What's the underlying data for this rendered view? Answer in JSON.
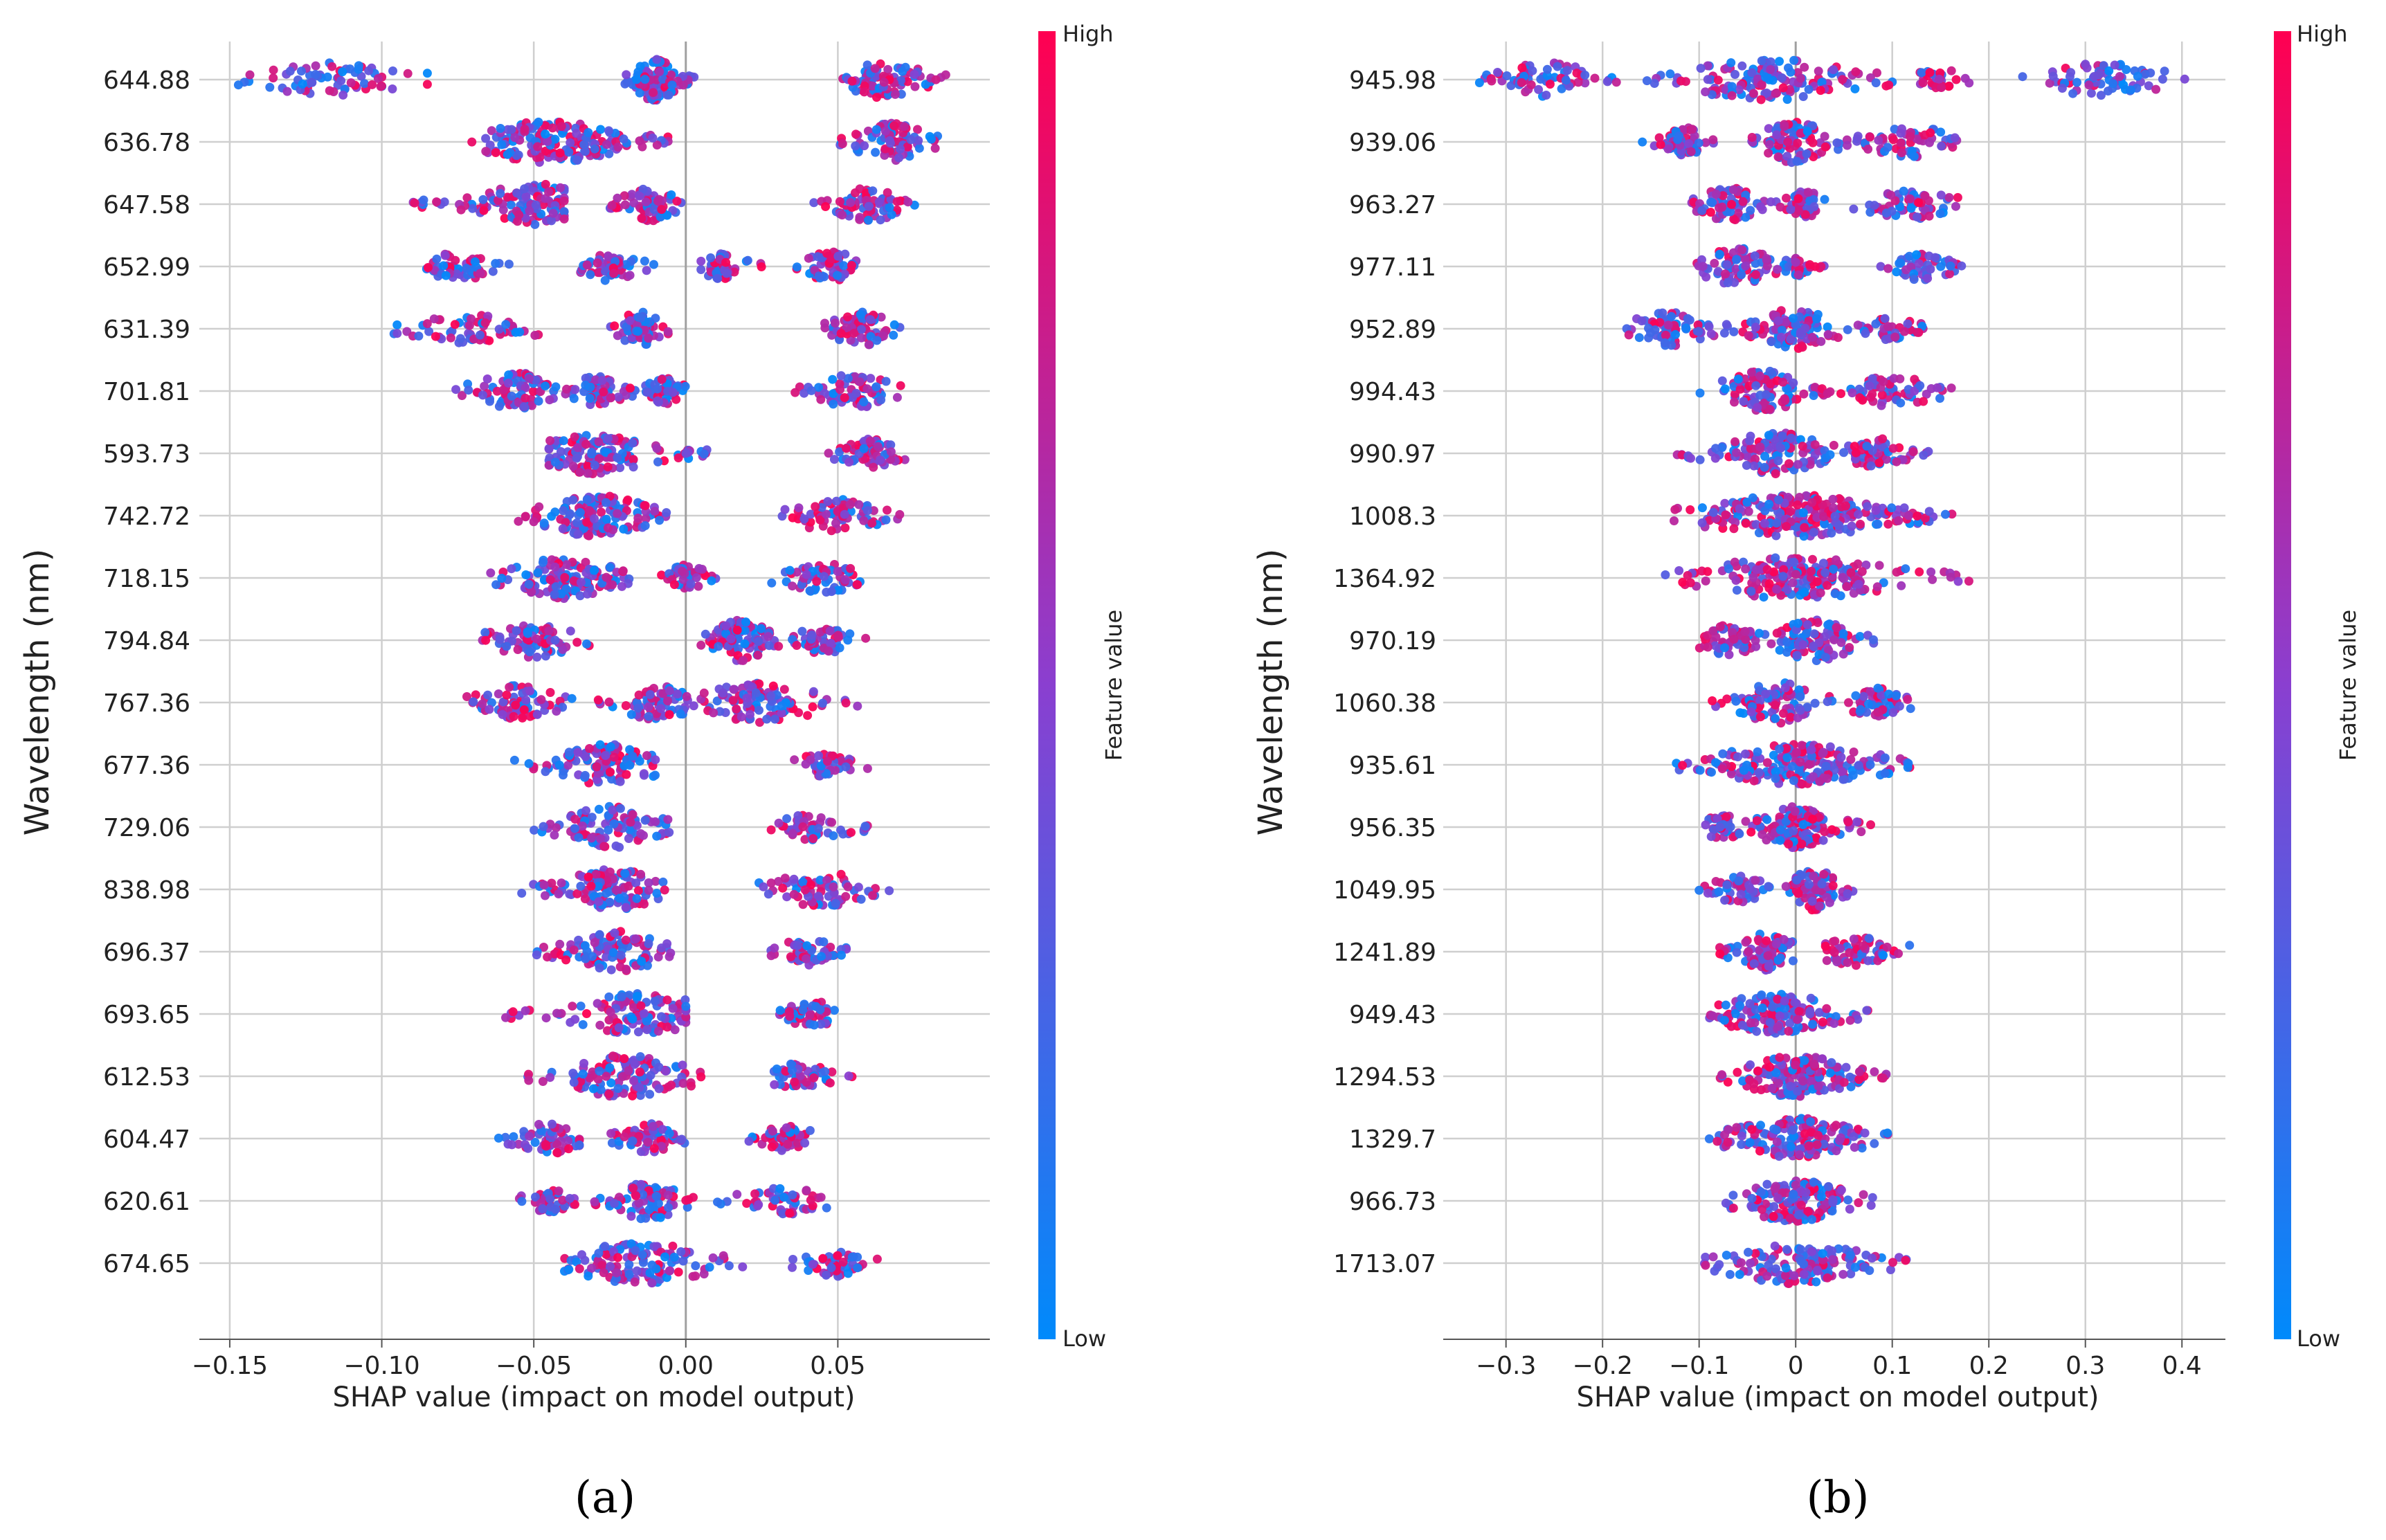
{
  "colors": {
    "low": "#008afb",
    "high": "#ff0051",
    "grid": "#cfcfcf",
    "zero_line": "#a0a0a0"
  },
  "chart_data": [
    {
      "type": "scatter",
      "subtype": "shap-beeswarm",
      "panel_label": "(a)",
      "xlabel": "SHAP value (impact on model output)",
      "ylabel": "Wavelength (nm)",
      "xlim": [
        -0.16,
        0.1
      ],
      "xticks": [
        -0.15,
        -0.1,
        -0.05,
        0.0,
        0.05
      ],
      "xtick_labels": [
        "−0.15",
        "−0.10",
        "−0.05",
        "0.00",
        "0.05"
      ],
      "colorbar": {
        "label": "Feature value",
        "high": "High",
        "low": "Low"
      },
      "grid": true,
      "features": [
        {
          "name": "644.88",
          "clusters": [
            {
              "min": -0.15,
              "max": -0.085,
              "c": -0.115,
              "n": 70,
              "hi": 0.45
            },
            {
              "min": -0.02,
              "max": 0.003,
              "c": -0.01,
              "n": 110,
              "hi": 0.4
            },
            {
              "min": 0.05,
              "max": 0.086,
              "c": 0.065,
              "n": 80,
              "hi": 0.55
            }
          ]
        },
        {
          "name": "636.78",
          "clusters": [
            {
              "min": -0.072,
              "max": -0.002,
              "c": -0.045,
              "n": 170,
              "hi": 0.45
            },
            {
              "min": 0.05,
              "max": 0.085,
              "c": 0.068,
              "n": 80,
              "hi": 0.55
            }
          ]
        },
        {
          "name": "647.58",
          "clusters": [
            {
              "min": -0.09,
              "max": -0.04,
              "c": -0.05,
              "n": 120,
              "hi": 0.5
            },
            {
              "min": -0.025,
              "max": 0.0,
              "c": -0.012,
              "n": 70,
              "hi": 0.45
            },
            {
              "min": 0.042,
              "max": 0.078,
              "c": 0.06,
              "n": 70,
              "hi": 0.55
            }
          ]
        },
        {
          "name": "652.99",
          "clusters": [
            {
              "min": -0.088,
              "max": -0.058,
              "c": -0.075,
              "n": 55,
              "hi": 0.5
            },
            {
              "min": -0.035,
              "max": -0.01,
              "c": -0.025,
              "n": 55,
              "hi": 0.5
            },
            {
              "min": 0.005,
              "max": 0.025,
              "c": 0.012,
              "n": 50,
              "hi": 0.45
            },
            {
              "min": 0.035,
              "max": 0.058,
              "c": 0.048,
              "n": 60,
              "hi": 0.5
            }
          ]
        },
        {
          "name": "631.39",
          "clusters": [
            {
              "min": -0.096,
              "max": -0.045,
              "c": -0.07,
              "n": 60,
              "hi": 0.5
            },
            {
              "min": -0.025,
              "max": -0.005,
              "c": -0.015,
              "n": 70,
              "hi": 0.45
            },
            {
              "min": 0.045,
              "max": 0.072,
              "c": 0.058,
              "n": 70,
              "hi": 0.6
            }
          ]
        },
        {
          "name": "701.81",
          "clusters": [
            {
              "min": -0.078,
              "max": -0.04,
              "c": -0.055,
              "n": 80,
              "hi": 0.5
            },
            {
              "min": -0.04,
              "max": -0.015,
              "c": -0.03,
              "n": 60,
              "hi": 0.5
            },
            {
              "min": -0.015,
              "max": 0.0,
              "c": -0.007,
              "n": 50,
              "hi": 0.45
            },
            {
              "min": 0.035,
              "max": 0.072,
              "c": 0.055,
              "n": 70,
              "hi": 0.55
            }
          ]
        },
        {
          "name": "593.73",
          "clusters": [
            {
              "min": -0.045,
              "max": 0.008,
              "c": -0.03,
              "n": 140,
              "hi": 0.45
            },
            {
              "min": 0.045,
              "max": 0.073,
              "c": 0.06,
              "n": 60,
              "hi": 0.6
            }
          ]
        },
        {
          "name": "742.72",
          "clusters": [
            {
              "min": -0.058,
              "max": -0.005,
              "c": -0.03,
              "n": 140,
              "hi": 0.45
            },
            {
              "min": 0.03,
              "max": 0.072,
              "c": 0.05,
              "n": 70,
              "hi": 0.55
            }
          ]
        },
        {
          "name": "718.15",
          "clusters": [
            {
              "min": -0.065,
              "max": -0.015,
              "c": -0.04,
              "n": 130,
              "hi": 0.5
            },
            {
              "min": -0.01,
              "max": 0.01,
              "c": 0.0,
              "n": 50,
              "hi": 0.5
            },
            {
              "min": 0.028,
              "max": 0.062,
              "c": 0.045,
              "n": 60,
              "hi": 0.5
            }
          ]
        },
        {
          "name": "794.84",
          "clusters": [
            {
              "min": -0.072,
              "max": -0.03,
              "c": -0.05,
              "n": 70,
              "hi": 0.45
            },
            {
              "min": 0.005,
              "max": 0.035,
              "c": 0.018,
              "n": 100,
              "hi": 0.55
            },
            {
              "min": 0.035,
              "max": 0.06,
              "c": 0.045,
              "n": 50,
              "hi": 0.3
            }
          ]
        },
        {
          "name": "767.36",
          "clusters": [
            {
              "min": -0.072,
              "max": -0.035,
              "c": -0.055,
              "n": 70,
              "hi": 0.5
            },
            {
              "min": -0.03,
              "max": 0.005,
              "c": -0.01,
              "n": 70,
              "hi": 0.5
            },
            {
              "min": 0.005,
              "max": 0.06,
              "c": 0.025,
              "n": 100,
              "hi": 0.5
            }
          ]
        },
        {
          "name": "677.36",
          "clusters": [
            {
              "min": -0.06,
              "max": -0.01,
              "c": -0.025,
              "n": 110,
              "hi": 0.45
            },
            {
              "min": 0.035,
              "max": 0.06,
              "c": 0.046,
              "n": 40,
              "hi": 0.55
            }
          ]
        },
        {
          "name": "729.06",
          "clusters": [
            {
              "min": -0.05,
              "max": -0.005,
              "c": -0.025,
              "n": 100,
              "hi": 0.45
            },
            {
              "min": 0.028,
              "max": 0.06,
              "c": 0.042,
              "n": 50,
              "hi": 0.5
            }
          ]
        },
        {
          "name": "838.98",
          "clusters": [
            {
              "min": -0.055,
              "max": -0.005,
              "c": -0.025,
              "n": 120,
              "hi": 0.45
            },
            {
              "min": 0.02,
              "max": 0.067,
              "c": 0.045,
              "n": 70,
              "hi": 0.55
            }
          ]
        },
        {
          "name": "696.37",
          "clusters": [
            {
              "min": -0.05,
              "max": -0.005,
              "c": -0.022,
              "n": 100,
              "hi": 0.45
            },
            {
              "min": 0.028,
              "max": 0.053,
              "c": 0.04,
              "n": 50,
              "hi": 0.5
            }
          ]
        },
        {
          "name": "693.65",
          "clusters": [
            {
              "min": -0.06,
              "max": 0.0,
              "c": -0.015,
              "n": 120,
              "hi": 0.5
            },
            {
              "min": 0.03,
              "max": 0.055,
              "c": 0.042,
              "n": 50,
              "hi": 0.55
            }
          ]
        },
        {
          "name": "612.53",
          "clusters": [
            {
              "min": -0.058,
              "max": 0.005,
              "c": -0.02,
              "n": 120,
              "hi": 0.5
            },
            {
              "min": 0.025,
              "max": 0.055,
              "c": 0.038,
              "n": 50,
              "hi": 0.5
            }
          ]
        },
        {
          "name": "604.47",
          "clusters": [
            {
              "min": -0.065,
              "max": -0.035,
              "c": -0.045,
              "n": 60,
              "hi": 0.5
            },
            {
              "min": -0.025,
              "max": 0.0,
              "c": -0.012,
              "n": 60,
              "hi": 0.45
            },
            {
              "min": 0.02,
              "max": 0.045,
              "c": 0.033,
              "n": 50,
              "hi": 0.55
            }
          ]
        },
        {
          "name": "620.61",
          "clusters": [
            {
              "min": -0.055,
              "max": -0.035,
              "c": -0.045,
              "n": 40,
              "hi": 0.45
            },
            {
              "min": -0.03,
              "max": 0.005,
              "c": -0.012,
              "n": 80,
              "hi": 0.5
            },
            {
              "min": 0.01,
              "max": 0.05,
              "c": 0.033,
              "n": 50,
              "hi": 0.5
            }
          ]
        },
        {
          "name": "674.65",
          "clusters": [
            {
              "min": -0.045,
              "max": 0.02,
              "c": -0.015,
              "n": 130,
              "hi": 0.5
            },
            {
              "min": 0.035,
              "max": 0.065,
              "c": 0.05,
              "n": 50,
              "hi": 0.5
            }
          ]
        }
      ]
    },
    {
      "type": "scatter",
      "subtype": "shap-beeswarm",
      "panel_label": "(b)",
      "xlabel": "SHAP value (impact on model output)",
      "ylabel": "Wavelength (nm)",
      "xlim": [
        -0.365,
        0.445
      ],
      "xticks": [
        -0.3,
        -0.2,
        -0.1,
        0.0,
        0.1,
        0.2,
        0.3,
        0.4
      ],
      "xtick_labels": [
        "−0.3",
        "−0.2",
        "−0.1",
        "0",
        "0.1",
        "0.2",
        "0.3",
        "0.4"
      ],
      "colorbar": {
        "label": "Feature value",
        "high": "High",
        "low": "Low"
      },
      "grid": true,
      "features": [
        {
          "name": "945.98",
          "clusters": [
            {
              "min": -0.335,
              "max": -0.18,
              "c": -0.26,
              "n": 70,
              "hi": 0.45
            },
            {
              "min": -0.16,
              "max": 0.1,
              "c": -0.03,
              "n": 140,
              "hi": 0.5
            },
            {
              "min": 0.1,
              "max": 0.18,
              "c": 0.15,
              "n": 30,
              "hi": 0.7
            },
            {
              "min": 0.23,
              "max": 0.41,
              "c": 0.32,
              "n": 70,
              "hi": 0.25
            }
          ]
        },
        {
          "name": "939.06",
          "clusters": [
            {
              "min": -0.16,
              "max": -0.085,
              "c": -0.12,
              "n": 60,
              "hi": 0.5
            },
            {
              "min": -0.05,
              "max": 0.055,
              "c": 0.0,
              "n": 90,
              "hi": 0.5
            },
            {
              "min": 0.06,
              "max": 0.19,
              "c": 0.12,
              "n": 60,
              "hi": 0.55
            }
          ]
        },
        {
          "name": "963.27",
          "clusters": [
            {
              "min": -0.11,
              "max": -0.02,
              "c": -0.07,
              "n": 70,
              "hi": 0.45
            },
            {
              "min": -0.02,
              "max": 0.03,
              "c": 0.01,
              "n": 50,
              "hi": 0.5
            },
            {
              "min": 0.05,
              "max": 0.17,
              "c": 0.12,
              "n": 60,
              "hi": 0.45
            }
          ]
        },
        {
          "name": "977.11",
          "clusters": [
            {
              "min": -0.11,
              "max": 0.0,
              "c": -0.06,
              "n": 80,
              "hi": 0.5
            },
            {
              "min": 0.0,
              "max": 0.05,
              "c": 0.0,
              "n": 30,
              "hi": 0.6
            },
            {
              "min": 0.08,
              "max": 0.175,
              "c": 0.13,
              "n": 50,
              "hi": 0.3
            }
          ]
        },
        {
          "name": "952.89",
          "clusters": [
            {
              "min": -0.175,
              "max": -0.06,
              "c": -0.13,
              "n": 70,
              "hi": 0.35
            },
            {
              "min": -0.06,
              "max": 0.06,
              "c": 0.0,
              "n": 100,
              "hi": 0.5
            },
            {
              "min": 0.06,
              "max": 0.135,
              "c": 0.1,
              "n": 40,
              "hi": 0.55
            }
          ]
        },
        {
          "name": "994.43",
          "clusters": [
            {
              "min": -0.1,
              "max": 0.03,
              "c": -0.035,
              "n": 100,
              "hi": 0.45
            },
            {
              "min": 0.03,
              "max": 0.165,
              "c": 0.1,
              "n": 60,
              "hi": 0.5
            }
          ]
        },
        {
          "name": "990.97",
          "clusters": [
            {
              "min": -0.13,
              "max": 0.03,
              "c": -0.02,
              "n": 120,
              "hi": 0.45
            },
            {
              "min": 0.03,
              "max": 0.145,
              "c": 0.08,
              "n": 60,
              "hi": 0.5
            }
          ]
        },
        {
          "name": "1008.3",
          "clusters": [
            {
              "min": -0.13,
              "max": 0.165,
              "c": 0.0,
              "n": 230,
              "hi": 0.5
            }
          ]
        },
        {
          "name": "1364.92",
          "clusters": [
            {
              "min": -0.135,
              "max": 0.18,
              "c": 0.0,
              "n": 200,
              "hi": 0.65
            }
          ]
        },
        {
          "name": "970.19",
          "clusters": [
            {
              "min": -0.11,
              "max": -0.03,
              "c": -0.07,
              "n": 60,
              "hi": 0.5
            },
            {
              "min": -0.03,
              "max": 0.085,
              "c": 0.02,
              "n": 100,
              "hi": 0.45
            }
          ]
        },
        {
          "name": "1060.38",
          "clusters": [
            {
              "min": -0.09,
              "max": 0.02,
              "c": -0.02,
              "n": 90,
              "hi": 0.5
            },
            {
              "min": 0.02,
              "max": 0.12,
              "c": 0.08,
              "n": 60,
              "hi": 0.55
            }
          ]
        },
        {
          "name": "935.61",
          "clusters": [
            {
              "min": -0.13,
              "max": 0.12,
              "c": 0.0,
              "n": 190,
              "hi": 0.5
            }
          ]
        },
        {
          "name": "956.35",
          "clusters": [
            {
              "min": -0.1,
              "max": -0.04,
              "c": -0.075,
              "n": 45,
              "hi": 0.45
            },
            {
              "min": -0.04,
              "max": 0.08,
              "c": 0.0,
              "n": 120,
              "hi": 0.5
            }
          ]
        },
        {
          "name": "1049.95",
          "clusters": [
            {
              "min": -0.1,
              "max": -0.02,
              "c": -0.06,
              "n": 50,
              "hi": 0.4
            },
            {
              "min": -0.01,
              "max": 0.065,
              "c": 0.02,
              "n": 90,
              "hi": 0.5
            }
          ]
        },
        {
          "name": "1241.89",
          "clusters": [
            {
              "min": -0.08,
              "max": 0.0,
              "c": -0.03,
              "n": 80,
              "hi": 0.6
            },
            {
              "min": 0.0,
              "max": 0.12,
              "c": 0.07,
              "n": 60,
              "hi": 0.65
            }
          ]
        },
        {
          "name": "949.43",
          "clusters": [
            {
              "min": -0.09,
              "max": 0.08,
              "c": -0.02,
              "n": 140,
              "hi": 0.45
            }
          ]
        },
        {
          "name": "1294.53",
          "clusters": [
            {
              "min": -0.08,
              "max": 0.095,
              "c": 0.0,
              "n": 160,
              "hi": 0.55
            }
          ]
        },
        {
          "name": "1329.7",
          "clusters": [
            {
              "min": -0.09,
              "max": 0.1,
              "c": 0.0,
              "n": 160,
              "hi": 0.55
            }
          ]
        },
        {
          "name": "966.73",
          "clusters": [
            {
              "min": -0.075,
              "max": 0.085,
              "c": 0.0,
              "n": 150,
              "hi": 0.45
            }
          ]
        },
        {
          "name": "1713.07",
          "clusters": [
            {
              "min": -0.105,
              "max": 0.12,
              "c": 0.0,
              "n": 140,
              "hi": 0.45
            }
          ]
        }
      ]
    }
  ]
}
